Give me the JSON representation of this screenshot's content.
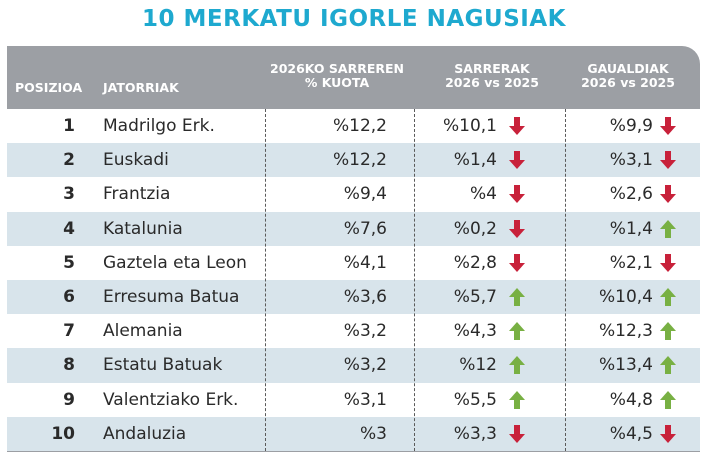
{
  "title": "10 MERKATU IGORLE NAGUSIAK",
  "header": {
    "posizioa": "POSIZIOA",
    "jatorriak": "JATORRIAK",
    "kuota_line1": "2026KO SARREREN",
    "kuota_line2": "% KUOTA",
    "sarrerak_line1": "SARRERAK",
    "sarrerak_line2": "2026 vs 2025",
    "gauak_line1": "GAUALDIAK",
    "gauak_line2": "2026 vs 2025"
  },
  "colors": {
    "title": "#1ea9cf",
    "header_bg": "#9c9fa4",
    "row_alt": "#d8e4eb",
    "arrow_down": "#c8213a",
    "arrow_up": "#78b043"
  },
  "rows": [
    {
      "pos": "1",
      "origin": "Madrilgo Erk.",
      "kuota": "%12,2",
      "sarrerak": "%10,1",
      "sarrerak_trend": "down",
      "gauak": "%9,9",
      "gauak_trend": "down"
    },
    {
      "pos": "2",
      "origin": "Euskadi",
      "kuota": "%12,2",
      "sarrerak": "%1,4",
      "sarrerak_trend": "down",
      "gauak": "%3,1",
      "gauak_trend": "down"
    },
    {
      "pos": "3",
      "origin": "Frantzia",
      "kuota": "%9,4",
      "sarrerak": "%4",
      "sarrerak_trend": "down",
      "gauak": "%2,6",
      "gauak_trend": "down"
    },
    {
      "pos": "4",
      "origin": "Katalunia",
      "kuota": "%7,6",
      "sarrerak": "%0,2",
      "sarrerak_trend": "down",
      "gauak": "%1,4",
      "gauak_trend": "up"
    },
    {
      "pos": "5",
      "origin": "Gaztela eta Leon",
      "kuota": "%4,1",
      "sarrerak": "%2,8",
      "sarrerak_trend": "down",
      "gauak": "%2,1",
      "gauak_trend": "down"
    },
    {
      "pos": "6",
      "origin": "Erresuma Batua",
      "kuota": "%3,6",
      "sarrerak": "%5,7",
      "sarrerak_trend": "up",
      "gauak": "%10,4",
      "gauak_trend": "up"
    },
    {
      "pos": "7",
      "origin": "Alemania",
      "kuota": "%3,2",
      "sarrerak": "%4,3",
      "sarrerak_trend": "up",
      "gauak": "%12,3",
      "gauak_trend": "up"
    },
    {
      "pos": "8",
      "origin": "Estatu Batuak",
      "kuota": "%3,2",
      "sarrerak": "%12",
      "sarrerak_trend": "up",
      "gauak": "%13,4",
      "gauak_trend": "up"
    },
    {
      "pos": "9",
      "origin": "Valentziako Erk.",
      "kuota": "%3,1",
      "sarrerak": "%5,5",
      "sarrerak_trend": "up",
      "gauak": "%4,8",
      "gauak_trend": "up"
    },
    {
      "pos": "10",
      "origin": "Andaluzia",
      "kuota": "%3",
      "sarrerak": "%3,3",
      "sarrerak_trend": "down",
      "gauak": "%4,5",
      "gauak_trend": "down"
    }
  ]
}
